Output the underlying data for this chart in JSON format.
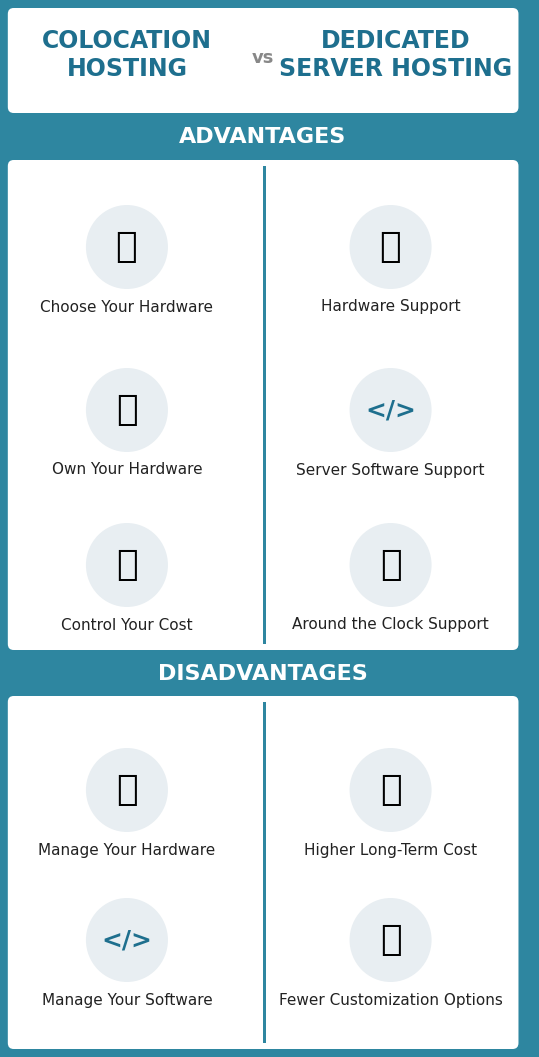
{
  "bg_color": "#2E86A0",
  "panel_color": "#FFFFFF",
  "header_text_color": "#1E6F8E",
  "section_banner_color": "#2E86A0",
  "section_banner_text_color": "#FFFFFF",
  "divider_color": "#2E86A0",
  "title_left": "COLOCATION\nHOSTING",
  "title_vs": "vs",
  "title_right": "DEDICATED\nSERVER HOSTING",
  "advantages_label": "ADVANTAGES",
  "disadvantages_label": "DISADVANTAGES",
  "left_advantages": [
    "Choose Your Hardware",
    "Own Your Hardware",
    "Control Your Cost"
  ],
  "right_advantages": [
    "Hardware Support",
    "Server Software Support",
    "Around the Clock Support"
  ],
  "left_disadvantages": [
    "Manage Your Hardware",
    "Manage Your Software"
  ],
  "right_disadvantages": [
    "Higher Long-Term Cost",
    "Fewer Customization Options"
  ],
  "icon_bg_color": "#E8EEF2",
  "icon_color": "#1E6F8E",
  "figsize": [
    5.39,
    10.57
  ],
  "dpi": 100
}
